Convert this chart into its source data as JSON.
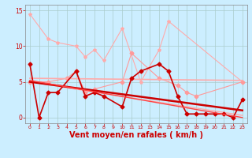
{
  "background_color": "#cceeff",
  "grid_color": "#aacccc",
  "xlabel": "Vent moyen/en rafales ( km/h )",
  "xlabel_color": "#cc0000",
  "xlabel_fontsize": 7,
  "yticks": [
    0,
    5,
    10,
    15
  ],
  "xticks": [
    0,
    1,
    2,
    3,
    4,
    5,
    6,
    7,
    8,
    9,
    10,
    11,
    12,
    13,
    14,
    15,
    16,
    17,
    18,
    19,
    20,
    21,
    22,
    23
  ],
  "xlim": [
    -0.5,
    23.5
  ],
  "ylim": [
    -0.8,
    15.8
  ],
  "series": [
    {
      "name": "light_pink_scatter",
      "x": [
        0,
        2,
        3,
        5,
        6,
        7,
        8,
        10,
        12,
        14,
        15,
        23
      ],
      "y": [
        14.5,
        11.0,
        10.5,
        10.0,
        8.5,
        9.5,
        8.0,
        12.5,
        5.0,
        9.5,
        13.5,
        5.0
      ],
      "color": "#ffaaaa",
      "linewidth": 0.8,
      "marker": "*",
      "markersize": 3,
      "linestyle": "-"
    },
    {
      "name": "pink_diamond",
      "x": [
        0,
        2,
        4,
        5,
        6,
        7,
        10,
        11,
        14,
        16,
        17,
        18,
        23
      ],
      "y": [
        5.0,
        5.0,
        5.5,
        6.5,
        3.5,
        4.0,
        5.0,
        9.0,
        5.5,
        4.5,
        3.5,
        3.0,
        5.0
      ],
      "color": "#ff9999",
      "linewidth": 0.8,
      "marker": "D",
      "markersize": 2.5,
      "linestyle": "-"
    },
    {
      "name": "pink_trend_upper",
      "x": [
        0,
        23
      ],
      "y": [
        5.5,
        5.2
      ],
      "color": "#ffaaaa",
      "linewidth": 1.2,
      "marker": null,
      "markersize": 0,
      "linestyle": "-"
    },
    {
      "name": "pink_trend_lower",
      "x": [
        0,
        23
      ],
      "y": [
        5.0,
        0.3
      ],
      "color": "#ffaaaa",
      "linewidth": 1.0,
      "marker": null,
      "markersize": 0,
      "linestyle": "-"
    },
    {
      "name": "dark_red_main",
      "x": [
        0,
        1,
        2,
        3,
        5,
        6,
        7,
        8,
        10,
        11,
        12,
        14,
        15,
        16,
        17,
        18,
        19,
        20,
        21,
        22,
        23
      ],
      "y": [
        7.5,
        0.0,
        3.5,
        3.5,
        6.5,
        3.0,
        3.5,
        3.0,
        1.5,
        5.5,
        6.5,
        7.5,
        6.5,
        3.0,
        0.5,
        0.5,
        0.5,
        0.5,
        0.5,
        0.0,
        2.5
      ],
      "color": "#cc0000",
      "linewidth": 1.2,
      "marker": "D",
      "markersize": 2.5,
      "linestyle": "-"
    },
    {
      "name": "dark_red_trend",
      "x": [
        0,
        23
      ],
      "y": [
        5.0,
        1.0
      ],
      "color": "#cc0000",
      "linewidth": 1.8,
      "marker": null,
      "markersize": 0,
      "linestyle": "-"
    },
    {
      "name": "red_trend2",
      "x": [
        0,
        23
      ],
      "y": [
        5.2,
        0.0
      ],
      "color": "#ff4444",
      "linewidth": 1.0,
      "marker": null,
      "markersize": 0,
      "linestyle": "-"
    }
  ]
}
